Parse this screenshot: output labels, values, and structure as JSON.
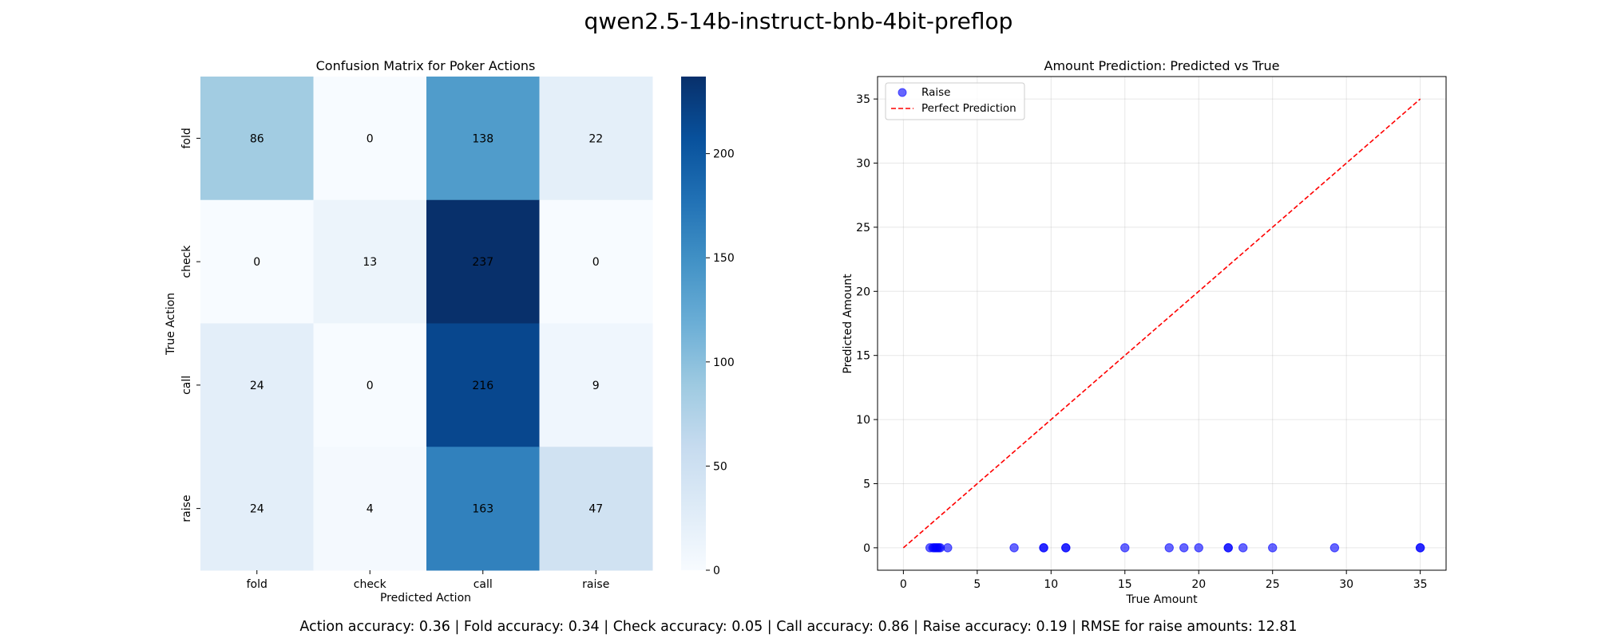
{
  "figure": {
    "title": "qwen2.5-14b-instruct-bnb-4bit-preflop",
    "footer": "Action accuracy: 0.36 | Fold accuracy: 0.34 | Check accuracy: 0.05 | Call accuracy: 0.86 | Raise accuracy: 0.19 | RMSE for raise amounts: 12.81"
  },
  "chart_data": [
    {
      "type": "heatmap",
      "title": "Confusion Matrix for Poker Actions",
      "xlabel": "Predicted Action",
      "ylabel": "True Action",
      "x_categories": [
        "fold",
        "check",
        "call",
        "raise"
      ],
      "y_categories": [
        "fold",
        "check",
        "call",
        "raise"
      ],
      "values": [
        [
          86,
          0,
          138,
          22
        ],
        [
          0,
          13,
          237,
          0
        ],
        [
          24,
          0,
          216,
          9
        ],
        [
          24,
          4,
          163,
          47
        ]
      ],
      "colormap": "Blues",
      "colorbar": {
        "min": 0,
        "max": 237,
        "ticks": [
          0,
          50,
          100,
          150,
          200
        ]
      },
      "annotation_colors": {
        "light": "#ffffff",
        "dark": "#262626"
      }
    },
    {
      "type": "scatter",
      "title": "Amount Prediction: Predicted vs True",
      "xlabel": "True Amount",
      "ylabel": "Predicted Amount",
      "xlim": [
        -1.75,
        36.75
      ],
      "ylim": [
        -1.75,
        36.75
      ],
      "xticks": [
        0,
        5,
        10,
        15,
        20,
        25,
        30,
        35
      ],
      "yticks": [
        0,
        5,
        10,
        15,
        20,
        25,
        30,
        35
      ],
      "grid": true,
      "legend_position": "top-left",
      "series": [
        {
          "name": "Raise",
          "color": "#0000ff",
          "points": [
            [
              1.8,
              0
            ],
            [
              2.0,
              0
            ],
            [
              2.1,
              0
            ],
            [
              2.2,
              0
            ],
            [
              2.3,
              0
            ],
            [
              2.4,
              0
            ],
            [
              2.5,
              0
            ],
            [
              3.0,
              0
            ],
            [
              7.5,
              0
            ],
            [
              9.5,
              0
            ],
            [
              9.5,
              0
            ],
            [
              11.0,
              0
            ],
            [
              11.0,
              0
            ],
            [
              15.0,
              0
            ],
            [
              18.0,
              0
            ],
            [
              19.0,
              0
            ],
            [
              20.0,
              0
            ],
            [
              22.0,
              0
            ],
            [
              22.0,
              0
            ],
            [
              23.0,
              0
            ],
            [
              25.0,
              0
            ],
            [
              29.2,
              0
            ],
            [
              35.0,
              0
            ],
            [
              35.0,
              0
            ]
          ]
        },
        {
          "name": "Perfect Prediction",
          "type": "line",
          "style": "dashed",
          "color": "#ff0000",
          "points": [
            [
              0,
              0
            ],
            [
              35,
              35
            ]
          ]
        }
      ]
    }
  ]
}
